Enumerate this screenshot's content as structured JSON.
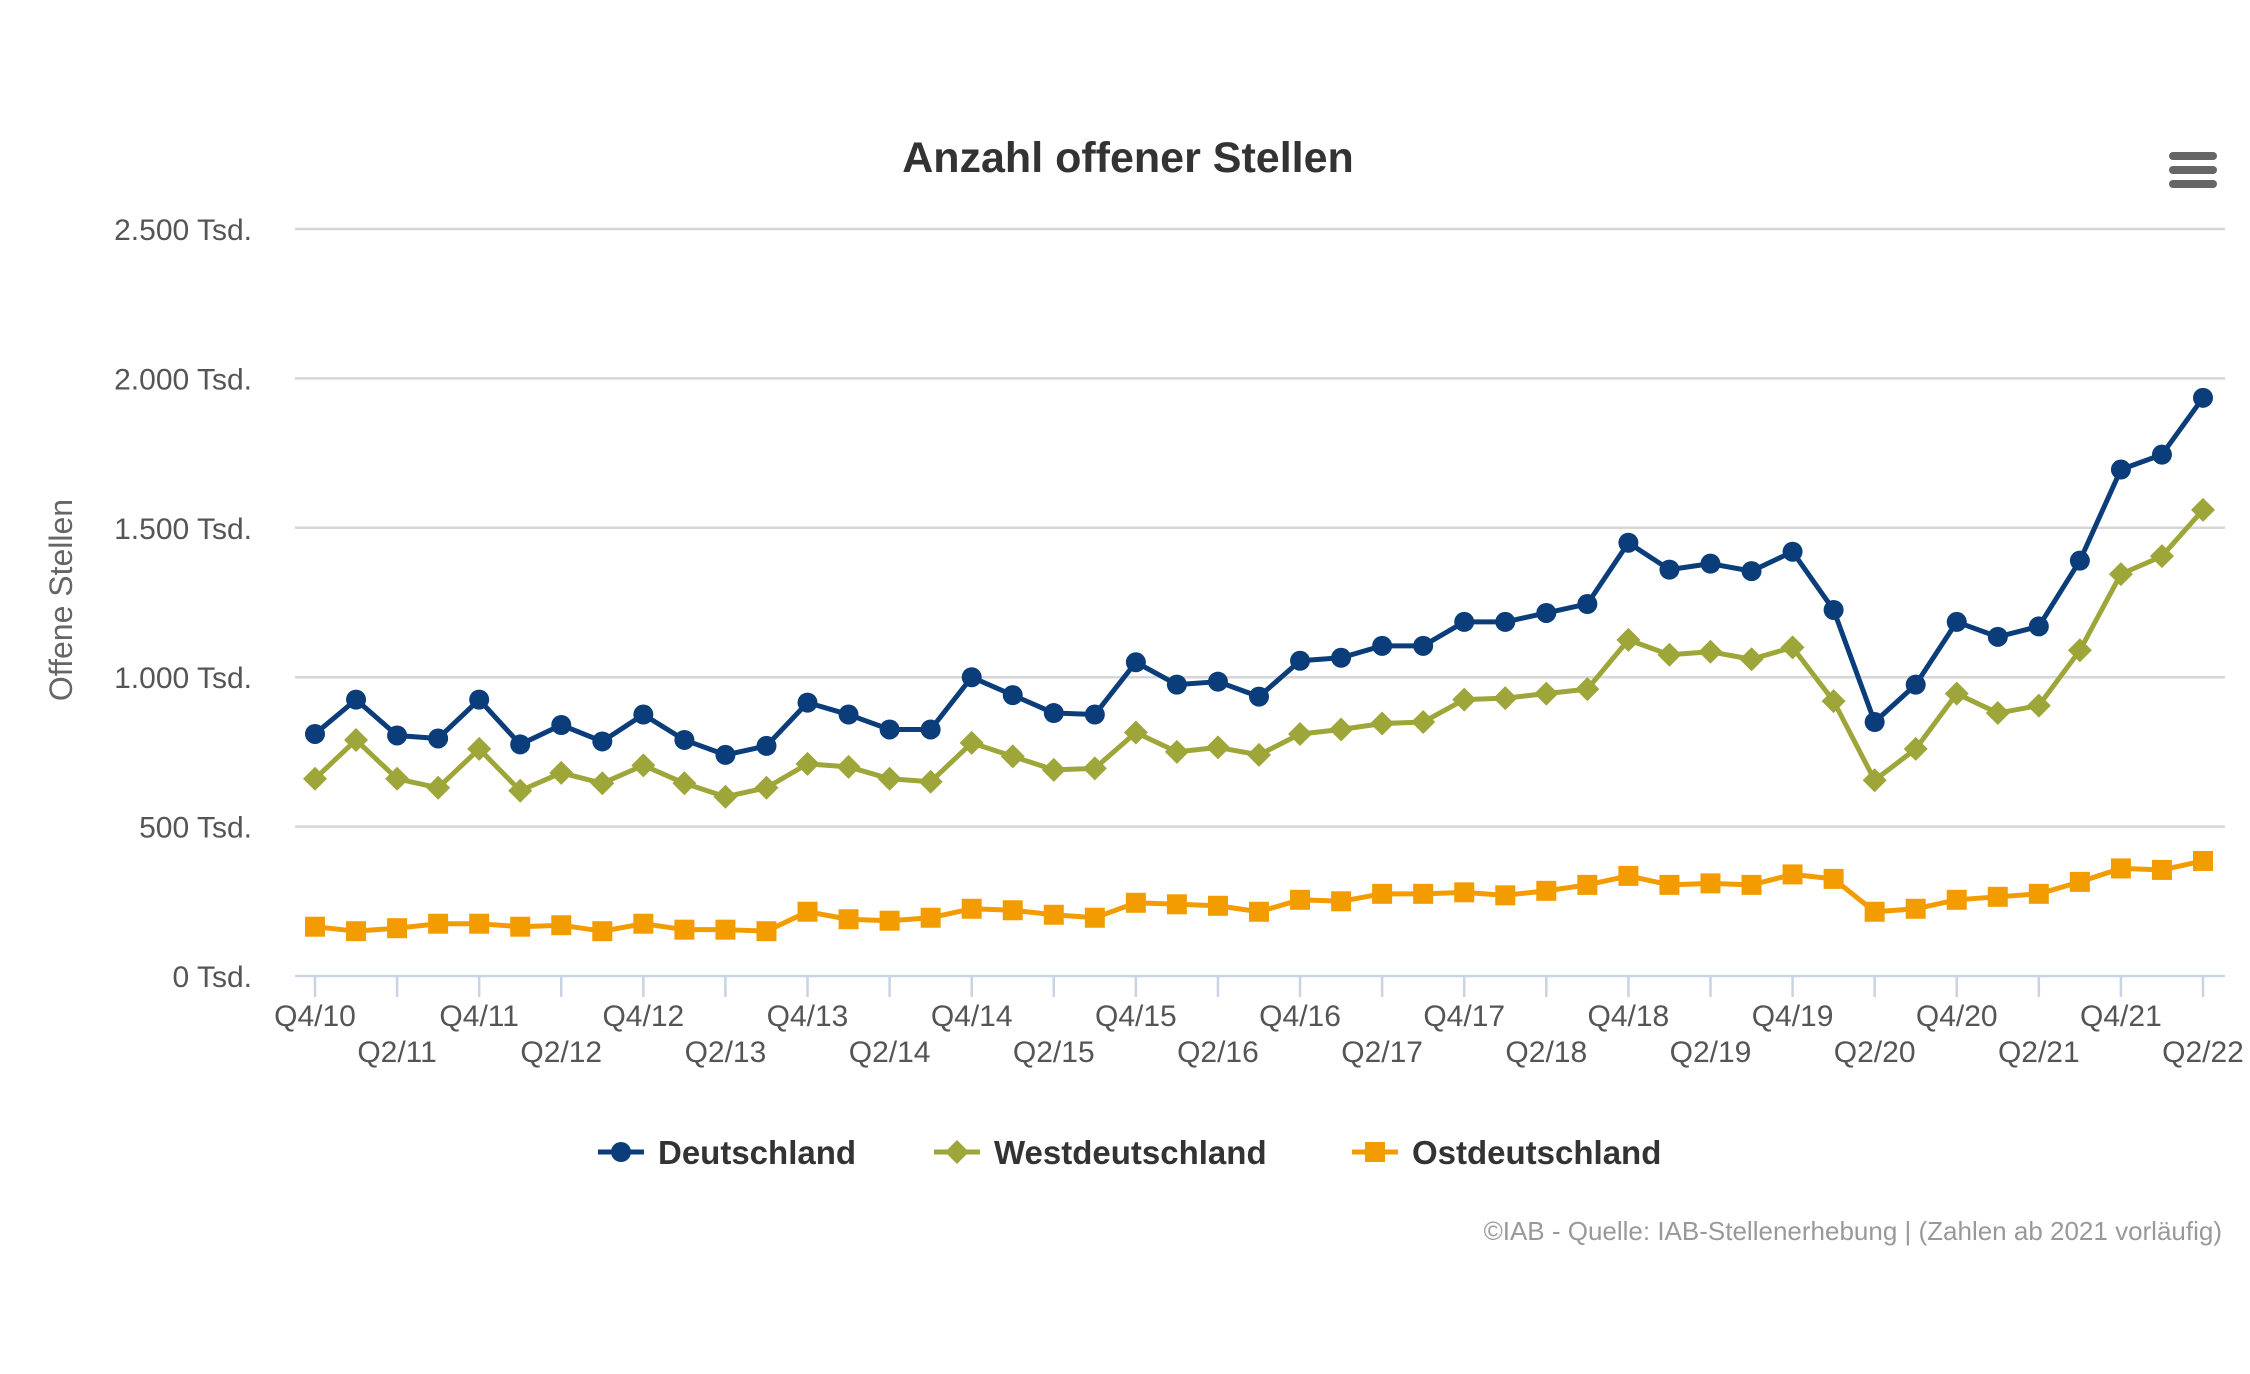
{
  "chart_data": {
    "type": "line",
    "title": "Anzahl offener Stellen",
    "ylabel": "Offene Stellen",
    "xlabel": "",
    "ylim": [
      0,
      2500
    ],
    "yticks": [
      {
        "value": 0,
        "label": "0 Tsd."
      },
      {
        "value": 500,
        "label": "500 Tsd."
      },
      {
        "value": 1000,
        "label": "1.000 Tsd."
      },
      {
        "value": 1500,
        "label": "1.500 Tsd."
      },
      {
        "value": 2000,
        "label": "2.000 Tsd."
      },
      {
        "value": 2500,
        "label": "2.500 Tsd."
      }
    ],
    "x": [
      "Q4/10",
      "Q1/11",
      "Q2/11",
      "Q3/11",
      "Q4/11",
      "Q1/12",
      "Q2/12",
      "Q3/12",
      "Q4/12",
      "Q1/13",
      "Q2/13",
      "Q3/13",
      "Q4/13",
      "Q1/14",
      "Q2/14",
      "Q3/14",
      "Q4/14",
      "Q1/15",
      "Q2/15",
      "Q3/15",
      "Q4/15",
      "Q1/16",
      "Q2/16",
      "Q3/16",
      "Q4/16",
      "Q1/17",
      "Q2/17",
      "Q3/17",
      "Q4/17",
      "Q1/18",
      "Q2/18",
      "Q3/18",
      "Q4/18",
      "Q1/19",
      "Q2/19",
      "Q3/19",
      "Q4/19",
      "Q1/20",
      "Q2/20",
      "Q3/20",
      "Q4/20",
      "Q1/21",
      "Q2/21",
      "Q3/21",
      "Q4/21",
      "Q1/22",
      "Q2/22"
    ],
    "xtick_labels": [
      {
        "index": 0,
        "label": "Q4/10"
      },
      {
        "index": 2,
        "label": "Q2/11"
      },
      {
        "index": 4,
        "label": "Q4/11"
      },
      {
        "index": 6,
        "label": "Q2/12"
      },
      {
        "index": 8,
        "label": "Q4/12"
      },
      {
        "index": 10,
        "label": "Q2/13"
      },
      {
        "index": 12,
        "label": "Q4/13"
      },
      {
        "index": 14,
        "label": "Q2/14"
      },
      {
        "index": 16,
        "label": "Q4/14"
      },
      {
        "index": 18,
        "label": "Q2/15"
      },
      {
        "index": 20,
        "label": "Q4/15"
      },
      {
        "index": 22,
        "label": "Q2/16"
      },
      {
        "index": 24,
        "label": "Q4/16"
      },
      {
        "index": 26,
        "label": "Q2/17"
      },
      {
        "index": 28,
        "label": "Q4/17"
      },
      {
        "index": 30,
        "label": "Q2/18"
      },
      {
        "index": 32,
        "label": "Q4/18"
      },
      {
        "index": 34,
        "label": "Q2/19"
      },
      {
        "index": 36,
        "label": "Q4/19"
      },
      {
        "index": 38,
        "label": "Q2/20"
      },
      {
        "index": 40,
        "label": "Q4/20"
      },
      {
        "index": 42,
        "label": "Q2/21"
      },
      {
        "index": 44,
        "label": "Q4/21"
      },
      {
        "index": 46,
        "label": "Q2/22"
      }
    ],
    "grid": true,
    "legend_position": "bottom",
    "series": [
      {
        "name": "Deutschland",
        "color": "#0b3d7a",
        "marker": "circle",
        "values": [
          810,
          925,
          805,
          795,
          925,
          775,
          840,
          785,
          875,
          790,
          740,
          770,
          915,
          875,
          825,
          825,
          1000,
          940,
          880,
          875,
          1050,
          975,
          985,
          935,
          1055,
          1065,
          1105,
          1105,
          1185,
          1185,
          1215,
          1245,
          1450,
          1360,
          1380,
          1355,
          1420,
          1225,
          850,
          975,
          1185,
          1135,
          1170,
          1390,
          1695,
          1745,
          1935
        ]
      },
      {
        "name": "Westdeutschland",
        "color": "#9ea63a",
        "marker": "diamond",
        "values": [
          660,
          790,
          660,
          630,
          760,
          620,
          680,
          645,
          705,
          645,
          600,
          630,
          710,
          700,
          660,
          650,
          780,
          735,
          690,
          695,
          815,
          750,
          765,
          740,
          810,
          825,
          845,
          850,
          925,
          930,
          945,
          960,
          1125,
          1075,
          1085,
          1060,
          1100,
          920,
          655,
          760,
          945,
          880,
          905,
          1090,
          1345,
          1405,
          1560
        ]
      },
      {
        "name": "Ostdeutschland",
        "color": "#f39c00",
        "marker": "square",
        "values": [
          165,
          150,
          160,
          175,
          175,
          165,
          170,
          150,
          175,
          155,
          155,
          150,
          215,
          190,
          185,
          195,
          225,
          220,
          205,
          195,
          245,
          240,
          235,
          215,
          255,
          250,
          275,
          275,
          280,
          270,
          285,
          305,
          335,
          305,
          310,
          305,
          340,
          325,
          215,
          225,
          255,
          265,
          275,
          315,
          360,
          355,
          385
        ]
      }
    ]
  },
  "credit": "©IAB - Quelle: IAB-Stellenerhebung | (Zahlen ab 2021 vorläufig)",
  "menu": {
    "icon": "hamburger-menu-icon",
    "color": "#666666"
  }
}
